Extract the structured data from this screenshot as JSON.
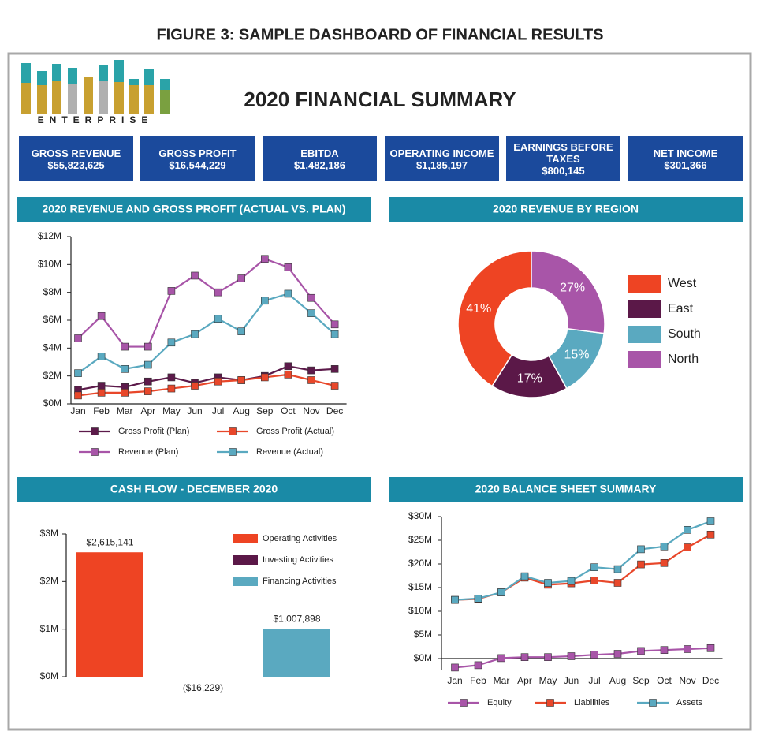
{
  "header": {
    "figure_title": "FIGURE 3: SAMPLE DASHBOARD OF FINANCIAL RESULTS",
    "title": "2020 FINANCIAL SUMMARY",
    "logo_text": "ENTERPRISE"
  },
  "kpis": [
    {
      "label": "GROSS REVENUE",
      "value": "$55,823,625"
    },
    {
      "label": "GROSS PROFIT",
      "value": "$16,544,229"
    },
    {
      "label": "EBITDA",
      "value": "$1,482,186"
    },
    {
      "label": "OPERATING INCOME",
      "value": "$1,185,197"
    },
    {
      "label": "EARNINGS BEFORE TAXES",
      "value": "$800,145"
    },
    {
      "label": "NET INCOME",
      "value": "$301,366"
    }
  ],
  "chart_data": [
    {
      "type": "line",
      "title": "2020 REVENUE AND GROSS PROFIT (ACTUAL VS. PLAN)",
      "categories": [
        "Jan",
        "Feb",
        "Mar",
        "Apr",
        "May",
        "Jun",
        "Jul",
        "Aug",
        "Sep",
        "Oct",
        "Nov",
        "Dec"
      ],
      "ylim": [
        0,
        12
      ],
      "yticks": [
        {
          "value": 0,
          "label": "$0M"
        },
        {
          "value": 2,
          "label": "$2M"
        },
        {
          "value": 4,
          "label": "$4M"
        },
        {
          "value": 6,
          "label": "$6M"
        },
        {
          "value": 8,
          "label": "$8M"
        },
        {
          "value": 10,
          "label": "$10M"
        },
        {
          "value": 12,
          "label": "$12M"
        }
      ],
      "series": [
        {
          "name": "Gross Profit (Plan)",
          "color": "#5c1a4a",
          "values": [
            1.0,
            1.3,
            1.2,
            1.6,
            1.9,
            1.5,
            1.9,
            1.7,
            2.0,
            2.7,
            2.4,
            2.5
          ]
        },
        {
          "name": "Gross Profit (Actual)",
          "color": "#e8472a",
          "values": [
            0.6,
            0.8,
            0.8,
            0.9,
            1.1,
            1.3,
            1.6,
            1.7,
            1.9,
            2.1,
            1.7,
            1.3
          ]
        },
        {
          "name": "Revenue (Plan)",
          "color": "#a855a8",
          "values": [
            4.7,
            6.3,
            4.1,
            4.1,
            8.1,
            9.2,
            8.0,
            9.0,
            10.4,
            9.8,
            7.6,
            5.7
          ]
        },
        {
          "name": "Revenue (Actual)",
          "color": "#5aa9c0",
          "values": [
            2.2,
            3.4,
            2.5,
            2.8,
            4.4,
            5.0,
            6.1,
            5.2,
            7.4,
            7.9,
            6.5,
            5.0
          ]
        }
      ]
    },
    {
      "type": "pie",
      "title": "2020 REVENUE BY REGION",
      "categories": [
        "West",
        "East",
        "South",
        "North"
      ],
      "values": [
        41,
        17,
        15,
        27
      ],
      "value_labels": [
        "41%",
        "17%",
        "15%",
        "27%"
      ],
      "colors": [
        "#ee4423",
        "#5b1848",
        "#5aa9c0",
        "#a855a8"
      ],
      "donut": true
    },
    {
      "type": "bar",
      "title": "CASH FLOW - DECEMBER 2020",
      "categories": [
        "Operating Activities",
        "Investing Activities",
        "Financing Activities"
      ],
      "values": [
        2615141,
        -16229,
        1007898
      ],
      "value_labels": [
        "$2,615,141",
        "($16,229)",
        "$1,007,898"
      ],
      "colors": [
        "#ee4423",
        "#5b1848",
        "#5aa9c0"
      ],
      "ylim": [
        0,
        3000000
      ],
      "yticks": [
        {
          "value": 0,
          "label": "$0M"
        },
        {
          "value": 1000000,
          "label": "$1M"
        },
        {
          "value": 2000000,
          "label": "$2M"
        },
        {
          "value": 3000000,
          "label": "$3M"
        }
      ]
    },
    {
      "type": "line",
      "title": "2020 BALANCE SHEET SUMMARY",
      "categories": [
        "Jan",
        "Feb",
        "Mar",
        "Apr",
        "May",
        "Jun",
        "Jul",
        "Aug",
        "Sep",
        "Oct",
        "Nov",
        "Dec"
      ],
      "ylim": [
        -2.5,
        30
      ],
      "yticks": [
        {
          "value": 0,
          "label": "$0M"
        },
        {
          "value": 5,
          "label": "$5M"
        },
        {
          "value": 10,
          "label": "$10M"
        },
        {
          "value": 15,
          "label": "$15M"
        },
        {
          "value": 20,
          "label": "$20M"
        },
        {
          "value": 25,
          "label": "$25M"
        },
        {
          "value": 30,
          "label": "$30M"
        }
      ],
      "series": [
        {
          "name": "Equity",
          "color": "#a855a8",
          "values": [
            -1.9,
            -1.4,
            0.1,
            0.3,
            0.3,
            0.5,
            0.8,
            1.0,
            1.6,
            1.8,
            2.0,
            2.2
          ]
        },
        {
          "name": "Liabilities",
          "color": "#e8472a",
          "values": [
            12.4,
            12.6,
            14.0,
            17.1,
            15.6,
            15.9,
            16.5,
            16.0,
            19.9,
            20.2,
            23.5,
            26.2
          ]
        },
        {
          "name": "Assets",
          "color": "#5aa9c0",
          "values": [
            12.4,
            12.7,
            14.0,
            17.4,
            16.0,
            16.4,
            19.3,
            18.9,
            23.1,
            23.7,
            27.2,
            29.0
          ]
        }
      ]
    }
  ]
}
